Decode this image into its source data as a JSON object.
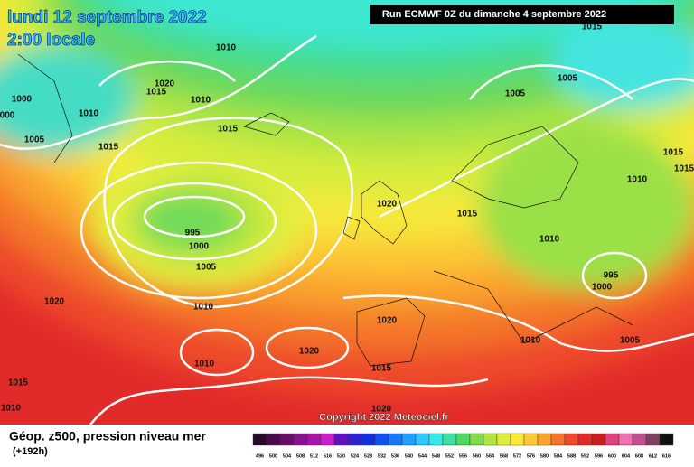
{
  "header": {
    "title": "lundi 12 septembre 2022",
    "subtitle": "2:00 locale",
    "run": "Run ECMWF 0Z du dimanche 4 septembre 2022"
  },
  "isobar_labels": [
    "1010",
    "1020",
    "1015",
    "1010",
    "1000",
    "000",
    "1010",
    "1005",
    "1015",
    "1015",
    "995",
    "1000",
    "1005",
    "1020",
    "1015",
    "1010",
    "995",
    "1000",
    "1010",
    "1015",
    "1015",
    "1005",
    "1005",
    "1015",
    "1020",
    "1010",
    "1020",
    "1020",
    "1010",
    "1015",
    "1010",
    "1005",
    "1015",
    "1010",
    "1020"
  ],
  "copyright": "Copyright 2022 Meteociel.fr",
  "legend": {
    "title": "Géop. z500, pression niveau mer",
    "lead": "(+192h)",
    "scale": [
      "496",
      "500",
      "504",
      "508",
      "512",
      "516",
      "520",
      "524",
      "528",
      "532",
      "536",
      "540",
      "544",
      "548",
      "552",
      "556",
      "560",
      "564",
      "568",
      "572",
      "576",
      "580",
      "584",
      "588",
      "592",
      "596",
      "600",
      "604",
      "608",
      "612",
      "616"
    ]
  }
}
